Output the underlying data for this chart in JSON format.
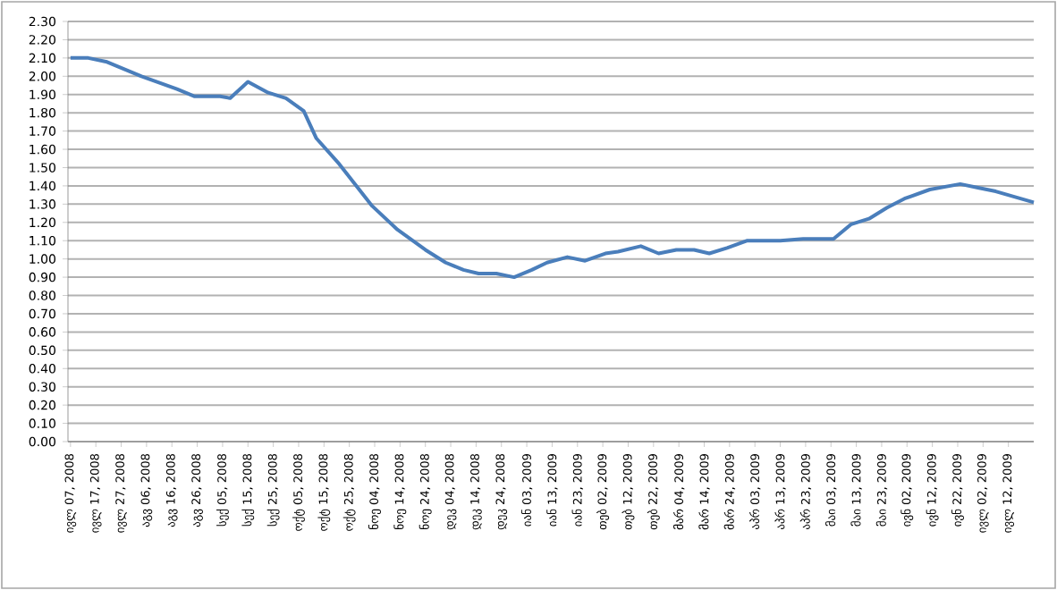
{
  "chart_data": {
    "type": "line",
    "grid": "y",
    "line_style": "solid",
    "marker": "none",
    "xlim": [
      "2008-07-06",
      "2009-07-22"
    ],
    "ylim": [
      0,
      2.3
    ],
    "xticks": [
      {
        "value": "2008-07-07",
        "label": "ივლ 07, 2008"
      },
      {
        "value": "2008-07-17",
        "label": "ივლ 17, 2008"
      },
      {
        "value": "2008-07-27",
        "label": "ივლ 27, 2008"
      },
      {
        "value": "2008-08-06",
        "label": "აგვ 06, 2008"
      },
      {
        "value": "2008-08-16",
        "label": "აგვ 16, 2008"
      },
      {
        "value": "2008-08-26",
        "label": "აგვ 26, 2008"
      },
      {
        "value": "2008-09-05",
        "label": "სექ 05, 2008"
      },
      {
        "value": "2008-09-15",
        "label": "სექ 15, 2008"
      },
      {
        "value": "2008-09-25",
        "label": "სექ 25, 2008"
      },
      {
        "value": "2008-10-05",
        "label": "ოქტ 05, 2008"
      },
      {
        "value": "2008-10-15",
        "label": "ოქტ 15, 2008"
      },
      {
        "value": "2008-10-25",
        "label": "ოქტ 25, 2008"
      },
      {
        "value": "2008-11-04",
        "label": "ნოე 04, 2008"
      },
      {
        "value": "2008-11-14",
        "label": "ნოე 14, 2008"
      },
      {
        "value": "2008-11-24",
        "label": "ნოე 24, 2008"
      },
      {
        "value": "2008-12-04",
        "label": "დეკ 04, 2008"
      },
      {
        "value": "2008-12-14",
        "label": "დეკ 14, 2008"
      },
      {
        "value": "2008-12-24",
        "label": "დეკ 24, 2008"
      },
      {
        "value": "2009-01-03",
        "label": "იან 03, 2009"
      },
      {
        "value": "2009-01-13",
        "label": "იან 13, 2009"
      },
      {
        "value": "2009-01-23",
        "label": "იან 23, 2009"
      },
      {
        "value": "2009-02-02",
        "label": "თებ 02, 2009"
      },
      {
        "value": "2009-02-12",
        "label": "თებ 12, 2009"
      },
      {
        "value": "2009-02-22",
        "label": "თებ 22, 2009"
      },
      {
        "value": "2009-03-04",
        "label": "მარ 04, 2009"
      },
      {
        "value": "2009-03-14",
        "label": "მარ 14, 2009"
      },
      {
        "value": "2009-03-24",
        "label": "მარ 24, 2009"
      },
      {
        "value": "2009-04-03",
        "label": "აპრ 03, 2009"
      },
      {
        "value": "2009-04-13",
        "label": "აპრ 13, 2009"
      },
      {
        "value": "2009-04-23",
        "label": "აპრ 23, 2009"
      },
      {
        "value": "2009-05-03",
        "label": "მაი 03, 2009"
      },
      {
        "value": "2009-05-13",
        "label": "მაი 13, 2009"
      },
      {
        "value": "2009-05-23",
        "label": "მაი 23, 2009"
      },
      {
        "value": "2009-06-02",
        "label": "ივნ 02, 2009"
      },
      {
        "value": "2009-06-12",
        "label": "ივნ 12, 2009"
      },
      {
        "value": "2009-06-22",
        "label": "ივნ 22, 2009"
      },
      {
        "value": "2009-07-02",
        "label": "ივლ 02, 2009"
      },
      {
        "value": "2009-07-12",
        "label": "ივლ 12, 2009"
      }
    ],
    "yticks": [
      {
        "value": 0,
        "label": "0.00"
      },
      {
        "value": 0.1,
        "label": "0.10"
      },
      {
        "value": 0.2,
        "label": "0.20"
      },
      {
        "value": 0.3,
        "label": "0.30"
      },
      {
        "value": 0.4,
        "label": "0.40"
      },
      {
        "value": 0.5,
        "label": "0.50"
      },
      {
        "value": 0.6,
        "label": "0.60"
      },
      {
        "value": 0.7,
        "label": "0.70"
      },
      {
        "value": 0.8,
        "label": "0.80"
      },
      {
        "value": 0.9,
        "label": "0.90"
      },
      {
        "value": 1.0,
        "label": "1.00"
      },
      {
        "value": 1.1,
        "label": "1.10"
      },
      {
        "value": 1.2,
        "label": "1.20"
      },
      {
        "value": 1.3,
        "label": "1.30"
      },
      {
        "value": 1.4,
        "label": "1.40"
      },
      {
        "value": 1.5,
        "label": "1.50"
      },
      {
        "value": 1.6,
        "label": "1.60"
      },
      {
        "value": 1.7,
        "label": "1.70"
      },
      {
        "value": 1.8,
        "label": "1.80"
      },
      {
        "value": 1.9,
        "label": "1.90"
      },
      {
        "value": 2.0,
        "label": "2.00"
      },
      {
        "value": 2.1,
        "label": "2.10"
      },
      {
        "value": 2.2,
        "label": "2.20"
      },
      {
        "value": 2.3,
        "label": "2.30"
      }
    ],
    "series": [
      {
        "color": "#4a7ebb",
        "x": [
          "2008-07-07",
          "2008-07-14",
          "2008-07-21",
          "2008-07-28",
          "2008-08-04",
          "2008-08-18",
          "2008-08-25",
          "2008-09-04",
          "2008-09-08",
          "2008-09-15",
          "2008-09-23",
          "2008-09-30",
          "2008-10-07",
          "2008-10-12",
          "2008-10-21",
          "2008-11-03",
          "2008-11-13",
          "2008-11-24",
          "2008-12-02",
          "2008-12-09",
          "2008-12-15",
          "2008-12-22",
          "2008-12-29",
          "2009-01-05",
          "2009-01-11",
          "2009-01-19",
          "2009-01-26",
          "2009-02-03",
          "2009-02-08",
          "2009-02-17",
          "2009-02-24",
          "2009-03-03",
          "2009-03-10",
          "2009-03-16",
          "2009-03-23",
          "2009-03-31",
          "2009-04-13",
          "2009-04-22",
          "2009-05-04",
          "2009-05-11",
          "2009-05-18",
          "2009-05-25",
          "2009-06-01",
          "2009-06-11",
          "2009-06-23",
          "2009-06-30",
          "2009-07-07",
          "2009-07-22"
        ],
        "values": [
          2.1,
          2.1,
          2.08,
          2.04,
          2.0,
          1.93,
          1.89,
          1.89,
          1.88,
          1.97,
          1.91,
          1.88,
          1.81,
          1.66,
          1.52,
          1.29,
          1.16,
          1.05,
          0.98,
          0.94,
          0.92,
          0.92,
          0.9,
          0.94,
          0.98,
          1.01,
          0.99,
          1.03,
          1.04,
          1.07,
          1.03,
          1.05,
          1.05,
          1.03,
          1.06,
          1.1,
          1.1,
          1.11,
          1.11,
          1.19,
          1.22,
          1.28,
          1.33,
          1.38,
          1.41,
          1.39,
          1.37,
          1.31
        ]
      }
    ]
  }
}
